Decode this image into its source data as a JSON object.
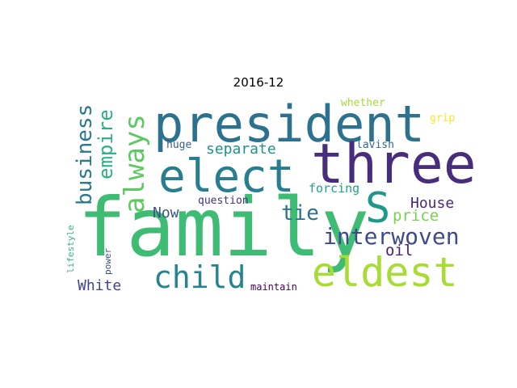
{
  "title": "2016-12",
  "words": [
    {
      "text": "family",
      "color": "#3fbc73",
      "rot": 0
    },
    {
      "text": "president",
      "color": "#2c728e",
      "rot": 0
    },
    {
      "text": "three",
      "color": "#472d7b",
      "rot": 0
    },
    {
      "text": "elect",
      "color": "#287d8e",
      "rot": 0
    },
    {
      "text": "eldest",
      "color": "#a8db34",
      "rot": 0
    },
    {
      "text": "S",
      "color": "#1f978b",
      "rot": 0
    },
    {
      "text": "child",
      "color": "#25848e",
      "rot": 0
    },
    {
      "text": "interwoven",
      "color": "#3e4a89",
      "rot": 0
    },
    {
      "text": "always",
      "color": "#5ec962",
      "rot": -90
    },
    {
      "text": "business",
      "color": "#2a788e",
      "rot": -90
    },
    {
      "text": "empire",
      "color": "#29af7f",
      "rot": -90
    },
    {
      "text": "tie",
      "color": "#2d708e",
      "rot": 0
    },
    {
      "text": "separate",
      "color": "#21918c",
      "rot": 0
    },
    {
      "text": "House",
      "color": "#482878",
      "rot": 0
    },
    {
      "text": "Now",
      "color": "#3b528b",
      "rot": 0
    },
    {
      "text": "price",
      "color": "#7ad151",
      "rot": 0
    },
    {
      "text": "White",
      "color": "#414487",
      "rot": 0
    },
    {
      "text": "oil",
      "color": "#481f70",
      "rot": 0
    },
    {
      "text": "forcing",
      "color": "#20a486",
      "rot": 0
    },
    {
      "text": "huge",
      "color": "#355f8d",
      "rot": 0
    },
    {
      "text": "lavish",
      "color": "#31688e",
      "rot": 0
    },
    {
      "text": "question",
      "color": "#46327e",
      "rot": 0
    },
    {
      "text": "whether",
      "color": "#a5db36",
      "rot": 0
    },
    {
      "text": "grip",
      "color": "#fde725",
      "rot": 0
    },
    {
      "text": "maintain",
      "color": "#440154",
      "rot": 0
    },
    {
      "text": "power",
      "color": "#3b528b",
      "rot": -90
    },
    {
      "text": "lifestyle",
      "color": "#35b779",
      "rot": -90
    }
  ]
}
